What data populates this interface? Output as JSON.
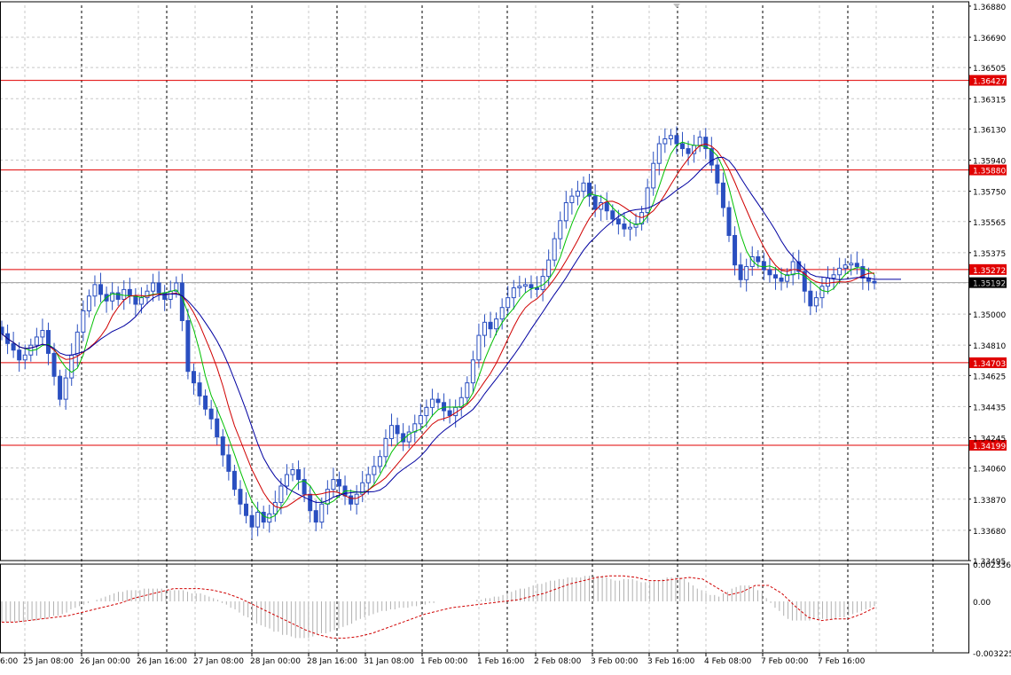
{
  "chart_data": [
    {
      "type": "candlestick",
      "title": "",
      "price_axis": {
        "ylim": [
          1.33495,
          1.36885
        ],
        "ticks": [
          "1.36880",
          "1.36690",
          "1.36505",
          "1.36315",
          "1.36130",
          "1.35940",
          "1.35750",
          "1.35565",
          "1.35375",
          "1.35190",
          "1.35000",
          "1.34810",
          "1.34625",
          "1.34435",
          "1.34245",
          "1.34060",
          "1.33870",
          "1.33680",
          "1.33495"
        ]
      },
      "time_axis": {
        "labels": [
          "25 Jan 08:00",
          "26 Jan 00:00",
          "26 Jan 16:00",
          "27 Jan 08:00",
          "28 Jan 00:00",
          "28 Jan 16:00",
          "31 Jan 08:00",
          "1 Feb 00:00",
          "1 Feb 16:00",
          "2 Feb 08:00",
          "3 Feb 00:00",
          "3 Feb 16:00",
          "4 Feb 08:00",
          "7 Feb 00:00",
          "7 Feb 16:00"
        ],
        "partial_left_label": "6:00"
      },
      "grid": true,
      "levels": [
        {
          "value": 1.36427,
          "label": "1.36427"
        },
        {
          "value": 1.3588,
          "label": "1.35880"
        },
        {
          "value": 1.35272,
          "label": "1.35272"
        },
        {
          "value": 1.34703,
          "label": "1.34703"
        },
        {
          "value": 1.34199,
          "label": "1.34199"
        }
      ],
      "current_price": {
        "value": 1.35192,
        "label": "1.35192"
      },
      "closes": [
        1.3488,
        1.3482,
        1.3478,
        1.3472,
        1.3475,
        1.3481,
        1.3486,
        1.349,
        1.3476,
        1.3462,
        1.3448,
        1.3461,
        1.3475,
        1.3489,
        1.3502,
        1.3511,
        1.3518,
        1.3512,
        1.3508,
        1.3513,
        1.3509,
        1.3515,
        1.3511,
        1.3506,
        1.351,
        1.3514,
        1.3519,
        1.3513,
        1.3509,
        1.3514,
        1.3519,
        1.3496,
        1.3465,
        1.3458,
        1.345,
        1.3442,
        1.3436,
        1.3425,
        1.3414,
        1.3404,
        1.3393,
        1.3384,
        1.3377,
        1.337,
        1.3379,
        1.3373,
        1.3378,
        1.3385,
        1.3395,
        1.3402,
        1.3405,
        1.3399,
        1.339,
        1.338,
        1.3373,
        1.3384,
        1.3393,
        1.3399,
        1.3395,
        1.3389,
        1.3384,
        1.339,
        1.3397,
        1.3402,
        1.3407,
        1.3413,
        1.3424,
        1.3432,
        1.3427,
        1.3422,
        1.3428,
        1.3433,
        1.3438,
        1.3443,
        1.3448,
        1.3446,
        1.3441,
        1.3438,
        1.3443,
        1.3449,
        1.3458,
        1.3472,
        1.3487,
        1.3495,
        1.3491,
        1.3497,
        1.3504,
        1.351,
        1.3516,
        1.3517,
        1.3518,
        1.3516,
        1.3515,
        1.3523,
        1.3533,
        1.3546,
        1.3557,
        1.3568,
        1.3572,
        1.3575,
        1.358,
        1.3572,
        1.3564,
        1.3568,
        1.3563,
        1.3558,
        1.3555,
        1.3552,
        1.3553,
        1.3555,
        1.3562,
        1.3577,
        1.3592,
        1.3604,
        1.3607,
        1.3609,
        1.3604,
        1.3601,
        1.3598,
        1.3603,
        1.3608,
        1.3601,
        1.3591,
        1.358,
        1.3565,
        1.3548,
        1.353,
        1.3521,
        1.3529,
        1.3535,
        1.3532,
        1.3527,
        1.3524,
        1.3522,
        1.352,
        1.3524,
        1.3532,
        1.3526,
        1.3514,
        1.3505,
        1.351,
        1.3517,
        1.3522,
        1.3524,
        1.3528,
        1.353,
        1.3531,
        1.3529,
        1.3522,
        1.352,
        1.3519
      ]
    },
    {
      "type": "histogram",
      "title": "",
      "ylim": [
        -0.003225,
        0.002336
      ],
      "ticks": [
        "0.002336",
        "0.00",
        "-0.003225"
      ],
      "values": [
        -0.0013,
        -0.0013,
        -0.0013,
        -0.0013,
        -0.0013,
        -0.0013,
        -0.0012,
        -0.0012,
        -0.0012,
        -0.0011,
        -0.0011,
        -0.001,
        -0.0009,
        -0.0009,
        -0.0008,
        -0.0007,
        -0.0005,
        -0.0004,
        -0.0003,
        -0.0002,
        -0.0001,
        0,
        0.0001,
        0.0002,
        0.0003,
        0.0004,
        0.0005,
        0.0006,
        0.0006,
        0.0007,
        0.0007,
        0.0007,
        0.0007,
        0.0008,
        0.0008,
        0.0008,
        0.0008,
        0.0008,
        0.0007,
        0.0007,
        0.0007,
        0.0007,
        0.0007,
        0.0006,
        0.0005,
        0.0005,
        0.0005,
        0.0004,
        0.0003,
        0.0002,
        0.0001,
        -0.0001,
        -0.0002,
        -0.0004,
        -0.0005,
        -0.0007,
        -0.0009,
        -0.001,
        -0.0012,
        -0.0014,
        -0.0015,
        -0.0016,
        -0.0017,
        -0.0019,
        -0.0019,
        -0.0021,
        -0.0021,
        -0.0022,
        -0.0023,
        -0.0023,
        -0.0023,
        -0.0023,
        -0.0022,
        -0.0021,
        -0.002,
        -0.002,
        -0.0019,
        -0.0018,
        -0.0017,
        -0.0016,
        -0.0015,
        -0.0014,
        -0.0012,
        -0.0011,
        -0.001,
        -0.0009,
        -0.0008,
        -0.0007,
        -0.0006,
        -0.0006,
        -0.0005,
        -0.0005,
        -0.0004,
        -0.0004,
        -0.0004,
        -0.0003,
        -0.0003,
        -0.0002,
        -0.0002,
        -0.0001,
        -0.0001,
        0,
        0,
        0,
        0,
        0,
        0,
        0,
        0,
        0,
        0.0001,
        0.0001,
        0.0002,
        0.0002,
        0.0003,
        0.0003,
        0.0004,
        0.0005,
        0.0006,
        0.0007,
        0.0008,
        0.0008,
        0.0009,
        0.001,
        0.0011,
        0.0011,
        0.0012,
        0.0013,
        0.0013,
        0.0014,
        0.0014,
        0.0015,
        0.0015,
        0.0015,
        0.0015,
        0.0016,
        0.0016,
        0.0016,
        0.0016,
        0.0016,
        0.0015,
        0.0014,
        0.0013,
        0.0013,
        0.0014,
        0.0014,
        0.0014,
        0.0013,
        0.0012,
        0.0012,
        0.0012,
        0.0013,
        0.0013,
        0.0014,
        0.0015,
        0.0015,
        0.0015,
        0.0015,
        0.0014,
        0.0012,
        0.001,
        0.0008,
        0.0007,
        0.0005,
        0.0004,
        0.0004,
        0.0003,
        0.0005,
        0.0006,
        0.0008,
        0.0009,
        0.001,
        0.001,
        0.001,
        0.0009,
        0.0007,
        0.0005,
        0.0002,
        -0.0001,
        -0.0004,
        -0.0006,
        -0.0009,
        -0.0011,
        -0.0012,
        -0.0012,
        -0.0012,
        -0.0012,
        -0.0012,
        -0.0011,
        -0.0011,
        -0.0011,
        -0.0011,
        -0.0011,
        -0.0011,
        -0.001,
        -0.001,
        -0.0009,
        -0.0008,
        -0.0007,
        -0.0006,
        -0.0005,
        -0.0004,
        -0.0003
      ],
      "signal": [
        -0.0013,
        -0.0013,
        -0.0012,
        -0.0011,
        -0.001,
        -0.0009,
        -0.0007,
        -0.0005,
        -0.0003,
        -0.0001,
        0.0002,
        0.0004,
        0.0006,
        0.0008,
        0.0008,
        0.0008,
        0.0007,
        0.0005,
        0.0002,
        -0.0002,
        -0.0006,
        -0.001,
        -0.0014,
        -0.0018,
        -0.0021,
        -0.0023,
        -0.0023,
        -0.0022,
        -0.002,
        -0.0017,
        -0.0014,
        -0.0011,
        -0.0008,
        -0.0006,
        -0.0004,
        -0.0003,
        -0.0002,
        -0.0001,
        0,
        0.0001,
        0.0003,
        0.0005,
        0.0008,
        0.0011,
        0.0013,
        0.0015,
        0.0016,
        0.0016,
        0.0015,
        0.0013,
        0.0013,
        0.0014,
        0.0015,
        0.0014,
        0.0009,
        0.0004,
        0.0006,
        0.001,
        0.001,
        0.0005,
        -0.0003,
        -0.001,
        -0.0012,
        -0.0011,
        -0.0011,
        -0.0008,
        -0.0004
      ]
    }
  ],
  "colors": {
    "background": "#ffffff",
    "grid": "#c8c8c8",
    "vertical_dashes": "#000000",
    "candles": "#2a4fc0",
    "ma_fast": "#00c000",
    "ma_medium": "#d00000",
    "ma_slow": "#0000a0",
    "level_line": "#e00000",
    "level_tag_bg": "#e00000",
    "level_tag_text": "#ffffff",
    "price_tag_bg": "#000000",
    "histogram": "#b0b0b0",
    "signal": "#d00000",
    "axis_text": "#000000"
  }
}
